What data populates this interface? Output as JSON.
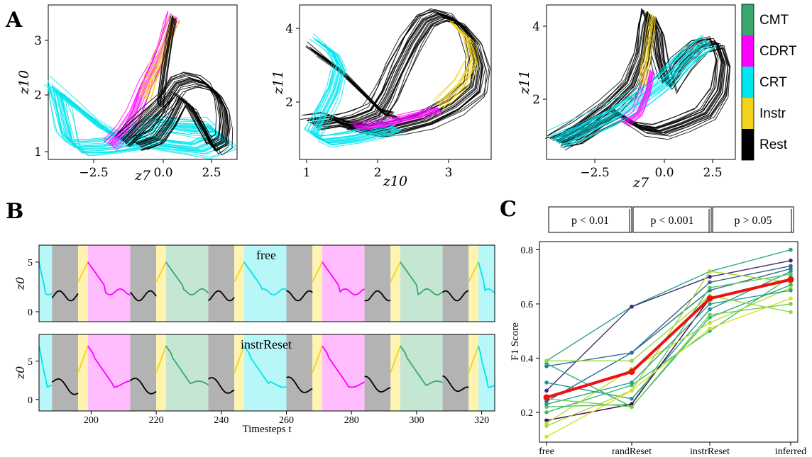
{
  "panels": {
    "A": "A",
    "B": "B",
    "C": "C"
  },
  "colors": {
    "CMT": "#3aa76d",
    "CDRT": "#ff00ff",
    "CRT": "#00e5ee",
    "Instr": "#f2d21b",
    "Rest": "#000000",
    "bg_CMT": "#c5e6d3",
    "bg_CDRT": "#ffbcff",
    "bg_CRT": "#b8f7f7",
    "bg_Instr": "#fff3b0",
    "bg_Rest": "#b3b3b3"
  },
  "legend": [
    "CMT",
    "CDRT",
    "CRT",
    "Instr",
    "Rest"
  ],
  "chart_data": [
    {
      "type": "line",
      "panel": "A1",
      "xlabel": "z7",
      "ylabel": "z10",
      "x_ticks": [
        "−2.5",
        "0.0",
        "2.5"
      ],
      "y_ticks": [
        "1",
        "2",
        "3"
      ],
      "xlim": [
        -4.8,
        3.3
      ],
      "ylim": [
        0.9,
        3.5
      ]
    },
    {
      "type": "line",
      "panel": "A2",
      "xlabel": "z10",
      "ylabel": "z11",
      "x_ticks": [
        "1",
        "2",
        "3"
      ],
      "y_ticks": [
        "2",
        "4"
      ],
      "xlim": [
        0.9,
        3.6
      ],
      "ylim": [
        0.5,
        4.8
      ]
    },
    {
      "type": "line",
      "panel": "A3",
      "xlabel": "z7",
      "ylabel": "z11",
      "x_ticks": [
        "−2.5",
        "0.0",
        "2.5"
      ],
      "y_ticks": [
        "2",
        "4"
      ],
      "xlim": [
        -4.8,
        3.3
      ],
      "ylim": [
        0.5,
        4.6
      ]
    },
    {
      "type": "line",
      "panel": "B1",
      "title": "free",
      "ylabel": "z0",
      "y_ticks": [
        "0",
        "5"
      ],
      "xlim": [
        184,
        324
      ],
      "ylim": [
        -1,
        6.7
      ]
    },
    {
      "type": "line",
      "panel": "B2",
      "title": "instrReset",
      "ylabel": "z0",
      "xlabel": "Timesteps t",
      "x_ticks": [
        "200",
        "220",
        "240",
        "260",
        "280",
        "300",
        "320"
      ],
      "y_ticks": [
        "0",
        "5"
      ],
      "xlim": [
        184,
        324
      ],
      "ylim": [
        -1.5,
        8.5
      ]
    },
    {
      "type": "line",
      "panel": "C",
      "ylabel": "F1 Score",
      "categories": [
        "free",
        "randReset",
        "instrReset",
        "inferred"
      ],
      "y_ticks": [
        "0.2",
        "0.4",
        "0.6",
        "0.8"
      ],
      "ylim": [
        0.09,
        0.83
      ],
      "mean": [
        0.255,
        0.35,
        0.62,
        0.69
      ],
      "series": [
        {
          "values": [
            0.39,
            0.59,
            0.72,
            0.8
          ]
        },
        {
          "values": [
            0.28,
            0.59,
            0.7,
            0.76
          ]
        },
        {
          "values": [
            0.24,
            0.42,
            0.68,
            0.74
          ]
        },
        {
          "values": [
            0.37,
            0.42,
            0.65,
            0.73
          ]
        },
        {
          "values": [
            0.31,
            0.25,
            0.58,
            0.72
          ]
        },
        {
          "values": [
            0.22,
            0.23,
            0.66,
            0.71
          ]
        },
        {
          "values": [
            0.2,
            0.3,
            0.5,
            0.7
          ]
        },
        {
          "values": [
            0.17,
            0.23,
            0.62,
            0.69
          ]
        },
        {
          "values": [
            0.15,
            0.28,
            0.72,
            0.68
          ]
        },
        {
          "values": [
            0.38,
            0.22,
            0.55,
            0.67
          ]
        },
        {
          "values": [
            0.16,
            0.36,
            0.53,
            0.66
          ]
        },
        {
          "values": [
            0.23,
            0.31,
            0.6,
            0.65
          ]
        },
        {
          "values": [
            0.11,
            0.28,
            0.51,
            0.62
          ]
        },
        {
          "values": [
            0.25,
            0.22,
            0.56,
            0.6
          ]
        },
        {
          "values": [
            0.39,
            0.39,
            0.63,
            0.57
          ]
        }
      ],
      "significance": [
        "p < 0.01",
        "p < 0.001",
        "p > 0.05"
      ]
    }
  ]
}
